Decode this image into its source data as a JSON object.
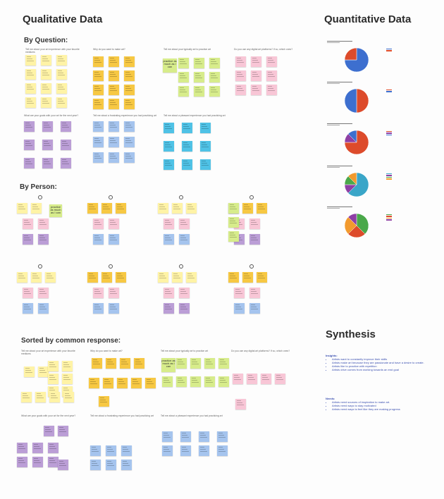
{
  "board": {
    "qualitative_title": "Qualitative Data",
    "quantitative_title": "Quantitative Data",
    "synthesis_title": "Synthesis"
  },
  "sections": {
    "by_question": "By Question:",
    "by_person": "By Person:",
    "sorted": "Sorted by common response:"
  },
  "questions": {
    "q1": "Tell me about your art experience with your favorite mediums",
    "q2": "Why do you want to make art?",
    "q3": "Tell me about your typically art to practice art",
    "q4": "Do you use any digital art platforms? If so, which ones?",
    "q5": "What are your goals with your art for the next year?",
    "q6": "Tell me about a frustrating experience you had practicing art",
    "q7": "Tell me about a pleasant experience you had practicing art"
  },
  "notes": {
    "practice": "practice as much as i can",
    "practice_alt": "practice as much as I can"
  },
  "colors": {
    "yellow": "#fff3a6",
    "orange": "#f7c843",
    "lime": "#d7ec8b",
    "pink": "#f8c6d6",
    "violet": "#bb9ed6",
    "blue": "#a5c4ee",
    "cyan": "#4fc2e6",
    "pie_blue": "#3d6fcf",
    "pie_red": "#dd4b2b",
    "pie_purple": "#8e3fa5",
    "pie_teal": "#3aa6c8",
    "pie_green": "#4aa84a",
    "pie_orange": "#f29a2e"
  },
  "chart_data": [
    {
      "type": "pie",
      "values": [
        75,
        25
      ]
    },
    {
      "type": "pie",
      "values": [
        50,
        50
      ]
    },
    {
      "type": "pie",
      "values": [
        75,
        12.5,
        12.5
      ]
    },
    {
      "type": "pie",
      "values": [
        62.5,
        12.5,
        12.5,
        12.5
      ]
    },
    {
      "type": "pie",
      "values": [
        37.5,
        25,
        25,
        12.5
      ]
    }
  ],
  "synthesis": {
    "insights_label": "Insights:",
    "insights": [
      "Artists want to constantly improve their skills",
      "Artists make art because they are passionate and have a desire to create.",
      "Artists like to practice with repetition",
      "Artists drive comes from working towards an end goal"
    ],
    "needs_label": "Needs:",
    "needs": [
      "Artists need sources of inspiration to make art.",
      "Artists need ways to stay motivated",
      "Artists need ways to feel like they are making progress"
    ]
  }
}
